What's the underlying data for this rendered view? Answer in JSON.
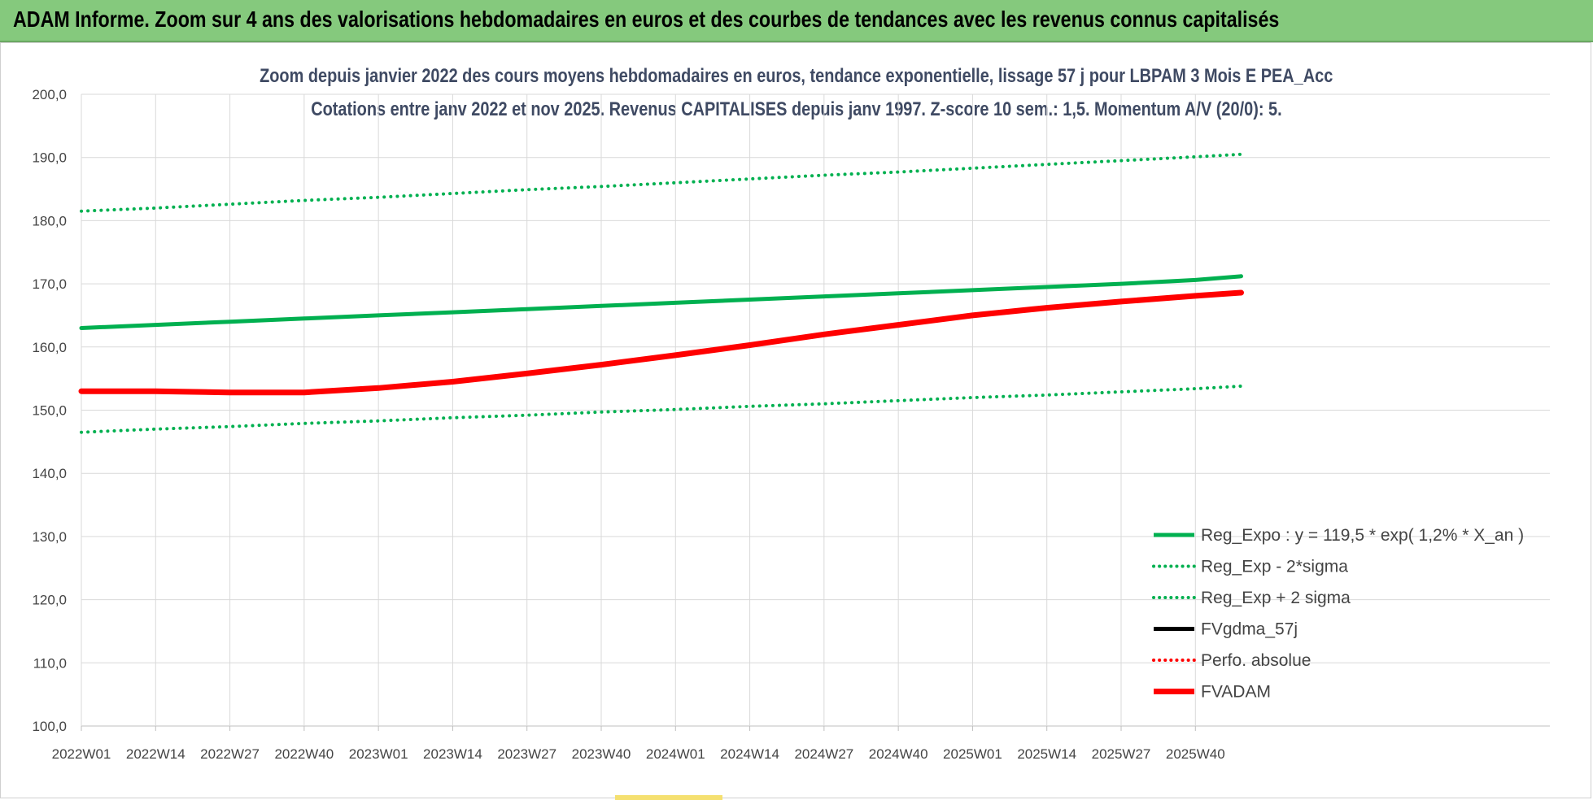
{
  "banner": {
    "title": "ADAM Informe. Zoom sur 4 ans des valorisations hebdomadaires en euros et des courbes de tendances avec les revenus connus capitalisés"
  },
  "chart_data": {
    "type": "line",
    "title": "Zoom depuis janvier 2022 des cours moyens hebdomadaires en euros, tendance exponentielle, lissage 57 j pour LBPAM 3 Mois E PEA_Acc",
    "subtitle": "Cotations entre janv 2022 et nov 2025. Revenus CAPITALISES depuis janv 1997. Z-score 10 sem.: 1,5. Momentum A/V (20/0): 5.",
    "ylim": [
      100,
      200
    ],
    "y_ticks": [
      "100,0",
      "110,0",
      "120,0",
      "130,0",
      "140,0",
      "150,0",
      "160,0",
      "170,0",
      "180,0",
      "190,0",
      "200,0"
    ],
    "x_ticks": [
      "2022W01",
      "2022W14",
      "2022W27",
      "2022W40",
      "2023W01",
      "2023W14",
      "2023W27",
      "2023W40",
      "2024W01",
      "2024W14",
      "2024W27",
      "2024W40",
      "2025W01",
      "2025W14",
      "2025W27",
      "2025W40"
    ],
    "grid": true,
    "legend_position": "bottom-right",
    "series": [
      {
        "name": "Reg_Expo : y = 119,5 * exp( 1,2% *  X_an )",
        "color": "#00b050",
        "style": "solid",
        "x": [
          "2022W01",
          "2022W14",
          "2022W27",
          "2022W40",
          "2023W01",
          "2023W14",
          "2023W27",
          "2023W40",
          "2024W01",
          "2024W14",
          "2024W27",
          "2024W40",
          "2025W01",
          "2025W14",
          "2025W27",
          "2025W40",
          "2025W48"
        ],
        "values": [
          163.0,
          163.5,
          164.0,
          164.5,
          165.0,
          165.5,
          166.0,
          166.5,
          167.0,
          167.5,
          168.0,
          168.5,
          169.0,
          169.5,
          170.0,
          170.6,
          171.2
        ]
      },
      {
        "name": "Reg_Exp - 2*sigma",
        "color": "#00b050",
        "style": "dotted",
        "x": [
          "2022W01",
          "2022W14",
          "2022W27",
          "2022W40",
          "2023W01",
          "2023W14",
          "2023W27",
          "2023W40",
          "2024W01",
          "2024W14",
          "2024W27",
          "2024W40",
          "2025W01",
          "2025W14",
          "2025W27",
          "2025W40",
          "2025W48"
        ],
        "values": [
          146.5,
          147.0,
          147.4,
          147.9,
          148.3,
          148.8,
          149.2,
          149.7,
          150.1,
          150.6,
          151.0,
          151.5,
          152.0,
          152.4,
          152.9,
          153.4,
          153.8
        ]
      },
      {
        "name": "Reg_Exp + 2 sigma",
        "color": "#00b050",
        "style": "dotted",
        "x": [
          "2022W01",
          "2022W14",
          "2022W27",
          "2022W40",
          "2023W01",
          "2023W14",
          "2023W27",
          "2023W40",
          "2024W01",
          "2024W14",
          "2024W27",
          "2024W40",
          "2025W01",
          "2025W14",
          "2025W27",
          "2025W40",
          "2025W48"
        ],
        "values": [
          181.5,
          182.0,
          182.6,
          183.2,
          183.7,
          184.3,
          184.9,
          185.4,
          186.0,
          186.6,
          187.2,
          187.7,
          188.3,
          188.9,
          189.5,
          190.1,
          190.5
        ]
      },
      {
        "name": "FVgdma_57j",
        "color": "#000000",
        "style": "solid",
        "x": [],
        "values": []
      },
      {
        "name": "Perfo. absolue",
        "color": "#ff0000",
        "style": "dotted",
        "x": [],
        "values": []
      },
      {
        "name": "FVADAM",
        "color": "#ff0000",
        "style": "solid",
        "x": [
          "2022W01",
          "2022W14",
          "2022W27",
          "2022W40",
          "2023W01",
          "2023W14",
          "2023W27",
          "2023W40",
          "2024W01",
          "2024W14",
          "2024W27",
          "2024W40",
          "2025W01",
          "2025W14",
          "2025W27",
          "2025W40",
          "2025W48"
        ],
        "values": [
          153.0,
          153.0,
          152.8,
          152.8,
          153.5,
          154.5,
          155.8,
          157.2,
          158.7,
          160.3,
          162.0,
          163.5,
          165.0,
          166.2,
          167.2,
          168.1,
          168.6
        ]
      }
    ]
  }
}
